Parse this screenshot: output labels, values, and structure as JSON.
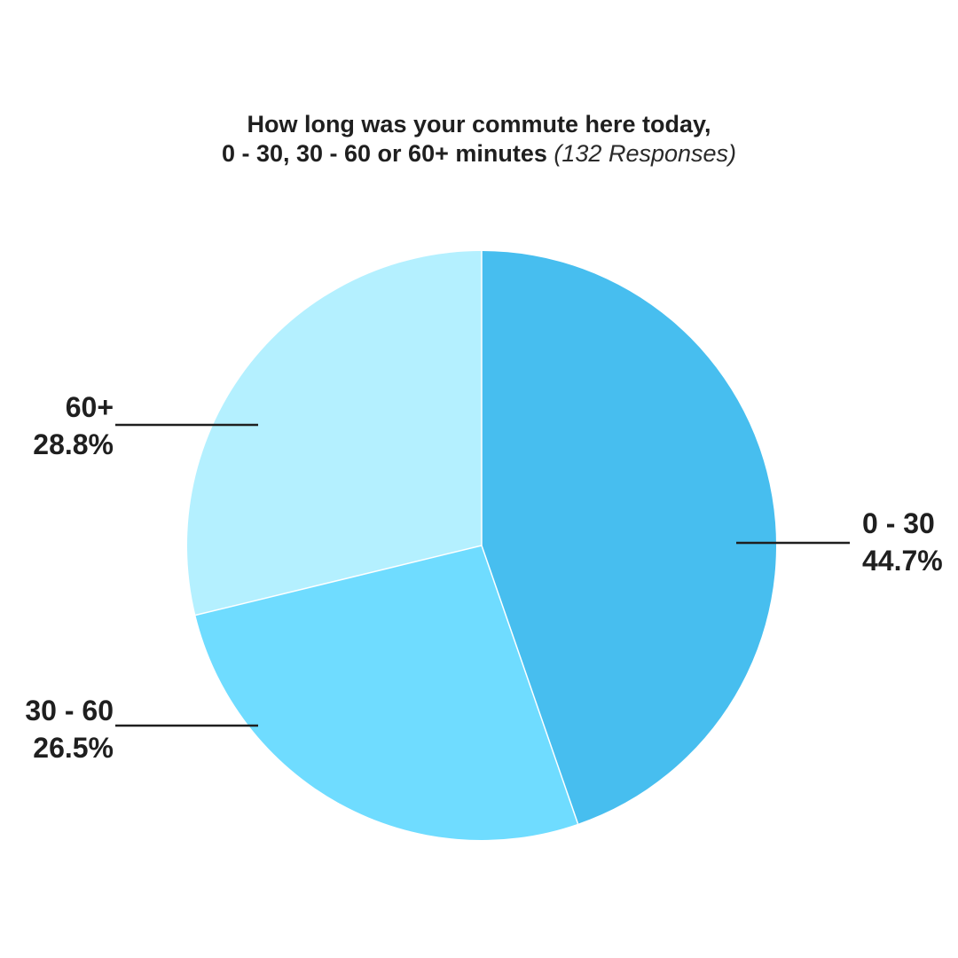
{
  "chart_data": {
    "type": "pie",
    "title_line1": "How long was your commute here today,",
    "title_line2": "0 - 30, 30 - 60 or 60+ minutes",
    "subtitle": "(132 Responses)",
    "categories": [
      "0 - 30",
      "30 - 60",
      "60+"
    ],
    "values": [
      44.7,
      26.5,
      28.8
    ],
    "value_labels": [
      "44.7%",
      "26.5%",
      "28.8%"
    ],
    "colors": [
      "#47BEEF",
      "#6FDCFF",
      "#B4F0FF"
    ],
    "label_text_color": "#1f1f1f",
    "leader_line_color": "#1f1f1f"
  }
}
